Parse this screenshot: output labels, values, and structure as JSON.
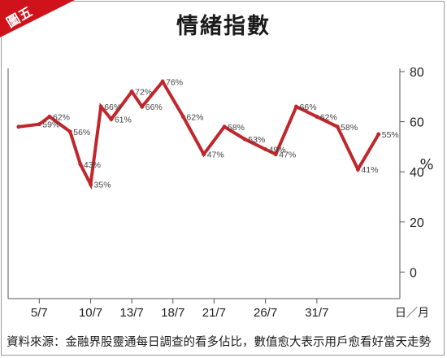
{
  "badge": {
    "text": "圖五",
    "color": "#d0121b"
  },
  "line_color": "#c0272d",
  "chart_data": {
    "type": "line",
    "title": "情緒指數",
    "ylabel": "%",
    "xlabel": "日／月",
    "ylim": [
      -8,
      80
    ],
    "yticks": [
      0,
      20,
      40,
      60,
      80
    ],
    "grid": false,
    "x_tick_labels": [
      "5/7",
      "10/7",
      "13/7",
      "18/7",
      "21/7",
      "26/7",
      "31/7"
    ],
    "x_tick_index": [
      2,
      7,
      11,
      15,
      19,
      24,
      29
    ],
    "series": [
      {
        "values": [
          58,
          59,
          62,
          56,
          43,
          35,
          66,
          61,
          72,
          66,
          76,
          62,
          47,
          58,
          53,
          49,
          47,
          66,
          62,
          58,
          41,
          55
        ],
        "labels": [
          "",
          "59%",
          "62%",
          "56%",
          "43%",
          "35%",
          "66%",
          "61%",
          "72%",
          "66%",
          "76%",
          "62%",
          "47%",
          "58%",
          "53%",
          "49%",
          "47%",
          "66%",
          "62%",
          "58%",
          "41%",
          "55%"
        ],
        "x_index": [
          0,
          2,
          3,
          5,
          6,
          7,
          8,
          9,
          11,
          12,
          14,
          16,
          18,
          20,
          22,
          24,
          25,
          27,
          29,
          31,
          33,
          35
        ]
      }
    ]
  },
  "source": "資料來源：金融界股靈通每日調查的看多佔比，數值愈大表示用戶愈看好當天走勢"
}
